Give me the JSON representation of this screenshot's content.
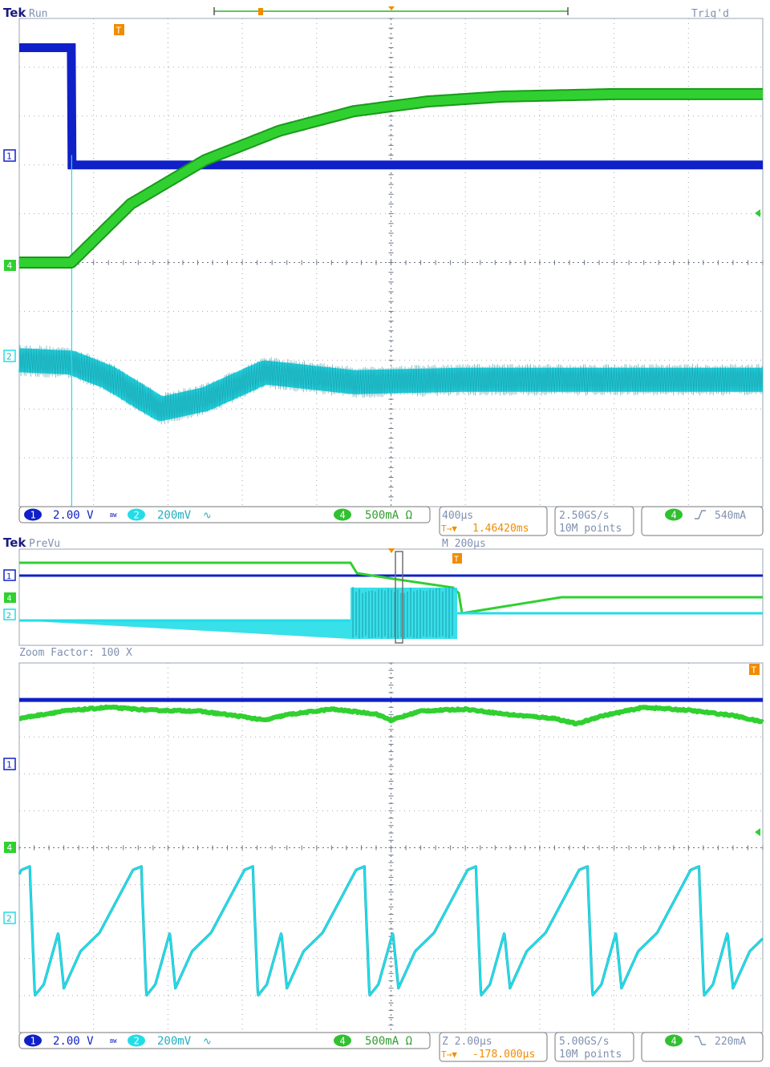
{
  "top": {
    "brand": "Tek",
    "state": "Run",
    "trig_status": "Trig'd",
    "trigger_marker": "T",
    "markers": {
      "ch1": "1",
      "ch4": "4",
      "ch2": "2"
    },
    "status_bar": {
      "ch1_num": "1",
      "ch1_scale": "2.00 V",
      "bw_icon": "BW",
      "ch2_num": "2",
      "ch2_scale": "200mV",
      "ch4_num": "4",
      "ch4_scale": "500mA Ω",
      "timebase": "400µs",
      "trig_pos_icon": "T→▼",
      "trig_pos": "1.46420ms",
      "sample_rate": "2.50GS/s",
      "record_length": "10M points",
      "trig_src": "4",
      "trig_level": "540mA"
    }
  },
  "bottom": {
    "brand": "Tek",
    "state": "PreVu",
    "main_timebase": "M 200µs",
    "zoom_factor": "Zoom Factor: 100 X",
    "trigger_marker": "T",
    "markers": {
      "ch1": "1",
      "ch4": "4",
      "ch2": "2"
    },
    "status_bar": {
      "ch1_num": "1",
      "ch1_scale": "2.00 V",
      "bw_icon": "BW",
      "ch2_num": "2",
      "ch2_scale": "200mV",
      "ch4_num": "4",
      "ch4_scale": "500mA Ω",
      "timebase": "Z 2.00µs",
      "trig_pos_icon": "T→▼",
      "trig_pos": "-178.000µs",
      "sample_rate": "5.00GS/s",
      "record_length": "10M points",
      "trig_src": "4",
      "trig_level": "220mA"
    }
  },
  "colors": {
    "ch1": "#1020c8",
    "ch2": "#22dde8",
    "ch4": "#30d030",
    "trigger": "#f08c00",
    "grid": "#9aa4b0",
    "label": "#8090b0"
  },
  "chart_data": [
    {
      "type": "line",
      "grid": "10x10 divisions",
      "x_unit": "div",
      "y_unit": "div",
      "series": [
        {
          "x": [
            0,
            0.7,
            0.71,
            10
          ],
          "values": [
            9.4,
            9.4,
            7.0,
            7.0
          ]
        },
        {
          "x": [
            0,
            0.7,
            1.5,
            2.5,
            3.5,
            4.5,
            5.5,
            6.5,
            8,
            10
          ],
          "values": [
            5.0,
            5.0,
            6.2,
            7.1,
            7.7,
            8.1,
            8.3,
            8.4,
            8.45,
            8.45
          ]
        },
        {
          "x": [
            0,
            0.7,
            1.2,
            1.9,
            2.5,
            3.3,
            4.5,
            6,
            10
          ],
          "values": [
            3.0,
            2.95,
            2.65,
            2.0,
            2.2,
            2.75,
            2.55,
            2.6,
            2.6
          ]
        }
      ]
    },
    {
      "type": "line",
      "grid": "10x10 divisions",
      "x_unit": "div",
      "y_unit": "div",
      "series": [
        {
          "x": [
            0,
            10
          ],
          "values": [
            9.0,
            9.0
          ]
        },
        {
          "x": [
            0,
            0.6,
            1.2,
            1.8,
            2.4,
            3.0,
            3.3,
            3.6,
            4.2,
            4.8,
            5.0,
            5.4,
            6.0,
            6.6,
            7.2,
            7.5,
            7.8,
            8.4,
            9.0,
            9.6,
            10
          ],
          "values": [
            8.5,
            8.7,
            8.8,
            8.72,
            8.7,
            8.55,
            8.45,
            8.6,
            8.75,
            8.62,
            8.45,
            8.7,
            8.75,
            8.6,
            8.5,
            8.35,
            8.55,
            8.8,
            8.72,
            8.58,
            8.4
          ]
        }
      ]
    }
  ]
}
